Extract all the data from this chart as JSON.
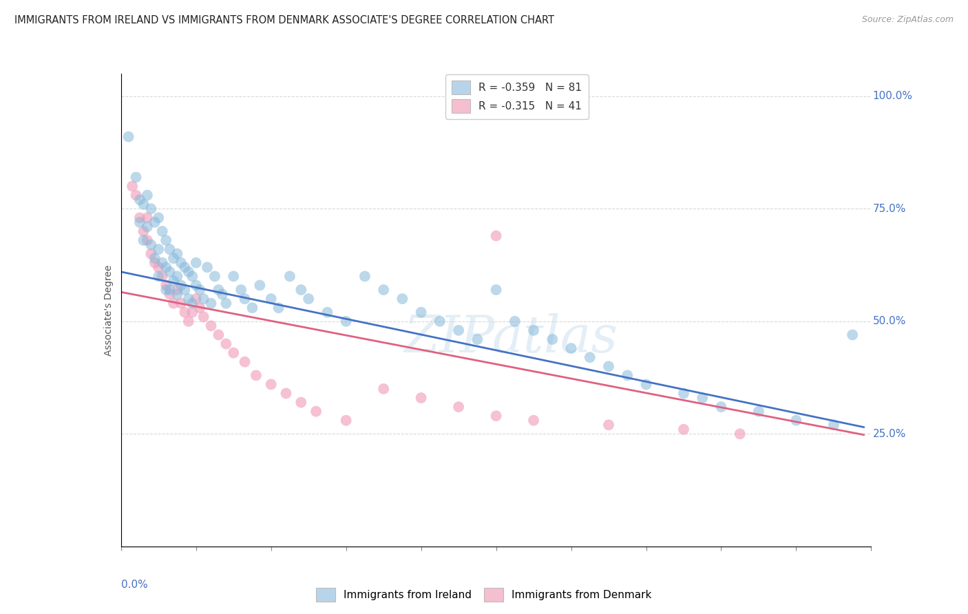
{
  "title": "IMMIGRANTS FROM IRELAND VS IMMIGRANTS FROM DENMARK ASSOCIATE'S DEGREE CORRELATION CHART",
  "source": "Source: ZipAtlas.com",
  "ylabel": "Associate's Degree",
  "ylabel_right_ticks": [
    "100.0%",
    "75.0%",
    "50.0%",
    "25.0%"
  ],
  "ylabel_right_vals": [
    1.0,
    0.75,
    0.5,
    0.25
  ],
  "xmin": 0.0,
  "xmax": 0.2,
  "ymin": 0.0,
  "ymax": 1.05,
  "legend_entries": [
    {
      "label": "R = -0.359   N = 81",
      "color": "#b8d4ea"
    },
    {
      "label": "R = -0.315   N = 41",
      "color": "#f5bfcf"
    }
  ],
  "bottom_legend": [
    {
      "label": "Immigrants from Ireland",
      "color": "#b8d4ea"
    },
    {
      "label": "Immigrants from Denmark",
      "color": "#f5bfcf"
    }
  ],
  "ireland_color": "#85b8d9",
  "denmark_color": "#f0a0bc",
  "ireland_line_color": "#4472c4",
  "denmark_line_color": "#e06080",
  "ireland_scatter_x": [
    0.002,
    0.004,
    0.005,
    0.005,
    0.006,
    0.006,
    0.007,
    0.007,
    0.008,
    0.008,
    0.009,
    0.009,
    0.01,
    0.01,
    0.01,
    0.011,
    0.011,
    0.012,
    0.012,
    0.012,
    0.013,
    0.013,
    0.013,
    0.014,
    0.014,
    0.015,
    0.015,
    0.015,
    0.016,
    0.016,
    0.017,
    0.017,
    0.018,
    0.018,
    0.019,
    0.019,
    0.02,
    0.02,
    0.021,
    0.022,
    0.023,
    0.024,
    0.025,
    0.026,
    0.027,
    0.028,
    0.03,
    0.032,
    0.033,
    0.035,
    0.037,
    0.04,
    0.042,
    0.045,
    0.048,
    0.05,
    0.055,
    0.06,
    0.065,
    0.07,
    0.075,
    0.08,
    0.085,
    0.09,
    0.095,
    0.1,
    0.105,
    0.11,
    0.115,
    0.12,
    0.125,
    0.13,
    0.135,
    0.14,
    0.15,
    0.155,
    0.16,
    0.17,
    0.18,
    0.19,
    0.195
  ],
  "ireland_scatter_y": [
    0.91,
    0.82,
    0.77,
    0.72,
    0.76,
    0.68,
    0.78,
    0.71,
    0.75,
    0.67,
    0.72,
    0.64,
    0.73,
    0.66,
    0.6,
    0.7,
    0.63,
    0.68,
    0.62,
    0.57,
    0.66,
    0.61,
    0.57,
    0.64,
    0.59,
    0.65,
    0.6,
    0.56,
    0.63,
    0.58,
    0.62,
    0.57,
    0.61,
    0.55,
    0.6,
    0.54,
    0.63,
    0.58,
    0.57,
    0.55,
    0.62,
    0.54,
    0.6,
    0.57,
    0.56,
    0.54,
    0.6,
    0.57,
    0.55,
    0.53,
    0.58,
    0.55,
    0.53,
    0.6,
    0.57,
    0.55,
    0.52,
    0.5,
    0.6,
    0.57,
    0.55,
    0.52,
    0.5,
    0.48,
    0.46,
    0.57,
    0.5,
    0.48,
    0.46,
    0.44,
    0.42,
    0.4,
    0.38,
    0.36,
    0.34,
    0.33,
    0.31,
    0.3,
    0.28,
    0.27,
    0.47
  ],
  "denmark_scatter_x": [
    0.003,
    0.004,
    0.005,
    0.006,
    0.007,
    0.007,
    0.008,
    0.009,
    0.01,
    0.011,
    0.012,
    0.013,
    0.014,
    0.015,
    0.016,
    0.017,
    0.018,
    0.019,
    0.02,
    0.021,
    0.022,
    0.024,
    0.026,
    0.028,
    0.03,
    0.033,
    0.036,
    0.04,
    0.044,
    0.048,
    0.052,
    0.06,
    0.07,
    0.08,
    0.09,
    0.1,
    0.11,
    0.13,
    0.15,
    0.165,
    0.1
  ],
  "denmark_scatter_y": [
    0.8,
    0.78,
    0.73,
    0.7,
    0.73,
    0.68,
    0.65,
    0.63,
    0.62,
    0.6,
    0.58,
    0.56,
    0.54,
    0.57,
    0.54,
    0.52,
    0.5,
    0.52,
    0.55,
    0.53,
    0.51,
    0.49,
    0.47,
    0.45,
    0.43,
    0.41,
    0.38,
    0.36,
    0.34,
    0.32,
    0.3,
    0.28,
    0.35,
    0.33,
    0.31,
    0.29,
    0.28,
    0.27,
    0.26,
    0.25,
    0.69
  ],
  "ireland_line": {
    "x0": 0.0,
    "x1": 0.198,
    "y0": 0.61,
    "y1": 0.265
  },
  "denmark_line": {
    "x0": 0.0,
    "x1": 0.198,
    "y0": 0.565,
    "y1": 0.248
  },
  "watermark": "ZIPatlas",
  "grid_color": "#d8d8d8",
  "background_color": "#ffffff",
  "title_fontsize": 11,
  "axis_fontsize": 10
}
